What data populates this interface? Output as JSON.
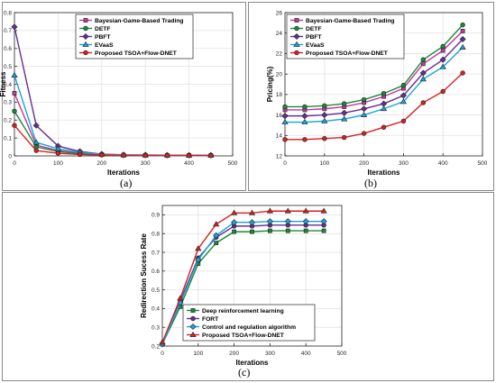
{
  "panels": [
    {
      "label": "(a)"
    },
    {
      "label": "(b)"
    },
    {
      "label": "(c)"
    }
  ],
  "chart_data": [
    {
      "type": "line",
      "xlabel": "Iterations",
      "ylabel": "Fitness",
      "xlim": [
        0,
        500
      ],
      "ylim": [
        0,
        0.8
      ],
      "xticks": [
        0,
        100,
        200,
        300,
        400,
        500
      ],
      "xtick_labels": [
        "0",
        "100",
        "200",
        "300",
        "400",
        "500"
      ],
      "yticks": [
        0,
        0.1,
        0.2,
        0.3,
        0.4,
        0.5,
        0.6,
        0.7,
        0.8
      ],
      "ytick_labels": [
        "0",
        "0.1",
        "0.2",
        "0.3",
        "0.4",
        "0.5",
        "0.6",
        "0.7",
        "0.8"
      ],
      "grid": true,
      "legend_position": "top-right",
      "x": [
        0,
        50,
        100,
        150,
        200,
        250,
        300,
        350,
        400,
        450
      ],
      "series": [
        {
          "name": "Bayesian-Game-Based Trading",
          "color": "#c0399b",
          "marker": "square",
          "values": [
            0.35,
            0.06,
            0.03,
            0.015,
            0.008,
            0.005,
            0.004,
            0.003,
            0.003,
            0.003
          ]
        },
        {
          "name": "DETF",
          "color": "#1a8a3a",
          "marker": "circle",
          "values": [
            0.25,
            0.05,
            0.025,
            0.012,
            0.006,
            0.004,
            0.003,
            0.003,
            0.002,
            0.002
          ]
        },
        {
          "name": "PBFT",
          "color": "#6a2c91",
          "marker": "diamond",
          "values": [
            0.72,
            0.17,
            0.055,
            0.025,
            0.01,
            0.006,
            0.005,
            0.004,
            0.004,
            0.004
          ]
        },
        {
          "name": "EVaaS",
          "color": "#1aa3d9",
          "marker": "triangle",
          "values": [
            0.45,
            0.075,
            0.04,
            0.02,
            0.008,
            0.005,
            0.004,
            0.003,
            0.003,
            0.003
          ]
        },
        {
          "name": "Proposed TSOA+Flow-DNET",
          "color": "#d62020",
          "marker": "circle",
          "values": [
            0.17,
            0.03,
            0.015,
            0.008,
            0.005,
            0.003,
            0.002,
            0.002,
            0.002,
            0.002
          ]
        }
      ]
    },
    {
      "type": "line",
      "xlabel": "Iterations",
      "ylabel": "Pricing(%)",
      "xlim": [
        0,
        500
      ],
      "ylim": [
        12,
        26
      ],
      "xticks": [
        0,
        100,
        200,
        300,
        400,
        500
      ],
      "xtick_labels": [
        "0",
        "100",
        "200",
        "300",
        "400",
        "500"
      ],
      "yticks": [
        12,
        14,
        16,
        18,
        20,
        22,
        24,
        26
      ],
      "ytick_labels": [
        "12",
        "14",
        "16",
        "18",
        "20",
        "22",
        "24",
        "26"
      ],
      "grid": true,
      "legend_position": "top-left",
      "x": [
        0,
        50,
        100,
        150,
        200,
        250,
        300,
        350,
        400,
        450
      ],
      "series": [
        {
          "name": "Bayesian-Game-Based Trading",
          "color": "#c0399b",
          "marker": "square",
          "values": [
            16.5,
            16.5,
            16.6,
            16.8,
            17.2,
            17.8,
            18.6,
            21.0,
            22.3,
            24.2
          ]
        },
        {
          "name": "DETF",
          "color": "#1a8a3a",
          "marker": "circle",
          "values": [
            16.8,
            16.8,
            16.9,
            17.1,
            17.5,
            18.1,
            18.9,
            21.4,
            22.7,
            24.8
          ]
        },
        {
          "name": "PBFT",
          "color": "#6a2c91",
          "marker": "diamond",
          "values": [
            15.9,
            15.9,
            16.0,
            16.2,
            16.6,
            17.1,
            17.9,
            20.1,
            21.4,
            23.4
          ]
        },
        {
          "name": "EVaaS",
          "color": "#1aa3d9",
          "marker": "triangle",
          "values": [
            15.3,
            15.3,
            15.4,
            15.6,
            16.0,
            16.6,
            17.3,
            19.5,
            20.7,
            22.6
          ]
        },
        {
          "name": "Proposed TSOA+Flow-DNET",
          "color": "#d62020",
          "marker": "circle",
          "values": [
            13.6,
            13.6,
            13.7,
            13.8,
            14.2,
            14.8,
            15.4,
            17.2,
            18.3,
            20.1
          ]
        }
      ]
    },
    {
      "type": "line",
      "xlabel": "Iterations",
      "ylabel": "Redirection Sucess Rate",
      "xlim": [
        0,
        500
      ],
      "ylim": [
        0.2,
        0.95
      ],
      "xticks": [
        0,
        100,
        200,
        300,
        400,
        500
      ],
      "xtick_labels": [
        "0",
        "100",
        "200",
        "300",
        "400",
        "500"
      ],
      "yticks": [
        0.2,
        0.3,
        0.4,
        0.5,
        0.6,
        0.7,
        0.8,
        0.9
      ],
      "ytick_labels": [
        "0.2",
        "0.3",
        "0.4",
        "0.5",
        "0.6",
        "0.7",
        "0.8",
        "0.9"
      ],
      "grid": true,
      "legend_position": "bottom-left",
      "x": [
        0,
        50,
        100,
        150,
        200,
        250,
        300,
        350,
        400,
        450
      ],
      "series": [
        {
          "name": "Deep reinforcement learning",
          "color": "#1a8a3a",
          "marker": "square",
          "values": [
            0.21,
            0.41,
            0.64,
            0.75,
            0.81,
            0.81,
            0.815,
            0.815,
            0.815,
            0.815
          ]
        },
        {
          "name": "FORT",
          "color": "#6a2c91",
          "marker": "circle",
          "values": [
            0.21,
            0.44,
            0.67,
            0.78,
            0.84,
            0.84,
            0.845,
            0.845,
            0.845,
            0.845
          ]
        },
        {
          "name": "Control and regulation algorithm",
          "color": "#1aa3d9",
          "marker": "diamond",
          "values": [
            0.21,
            0.43,
            0.66,
            0.79,
            0.86,
            0.86,
            0.865,
            0.865,
            0.865,
            0.865
          ]
        },
        {
          "name": "Proposed TSOA+Flow-DNET",
          "color": "#d62020",
          "marker": "triangle",
          "values": [
            0.22,
            0.455,
            0.72,
            0.85,
            0.91,
            0.91,
            0.92,
            0.92,
            0.92,
            0.92
          ]
        }
      ]
    }
  ]
}
